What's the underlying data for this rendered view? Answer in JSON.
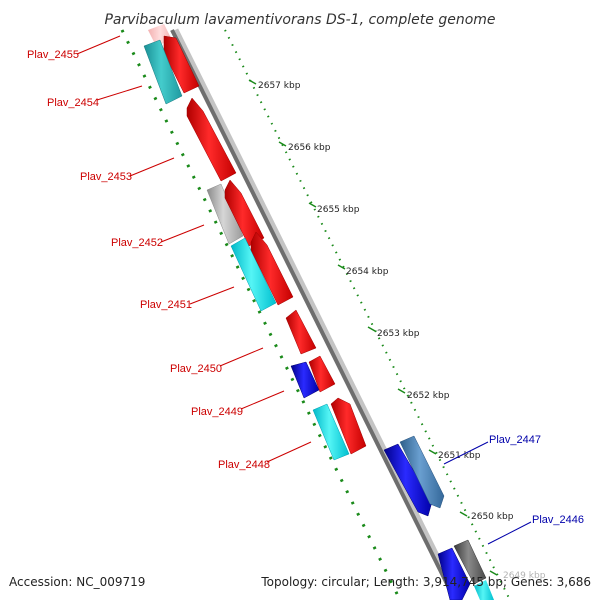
{
  "title": "Parvibaculum lavamentivorans DS-1, complete genome",
  "accession": "Accession: NC_009719",
  "summary": "Topology: circular; Length: 3,914,745 bp; Genes: 3,686",
  "colors": {
    "left_label": "#cc0000",
    "right_label": "#0000aa",
    "tick_green": "#1a8a1a",
    "backbone_dark": "#6e6e6e",
    "backbone_light": "#c4c4c4",
    "red": "#ee1111",
    "cyan": "#22dddd",
    "teal": "#33bbbb",
    "blue": "#1111dd",
    "steelblue": "#4a7fb0",
    "gray": "#b5b5b5",
    "darkgray": "#6b6b6b",
    "pink": "#f4aaaa"
  },
  "coordinate_labels": [
    "2657 kbp",
    "2656 kbp",
    "2655 kbp",
    "2654 kbp",
    "2653 kbp",
    "2652 kbp",
    "2651 kbp",
    "2650 kbp",
    "2649 kbp"
  ],
  "left_gene_labels": [
    "Plav_2455",
    "Plav_2454",
    "Plav_2453",
    "Plav_2452",
    "Plav_2451",
    "Plav_2450",
    "Plav_2449",
    "Plav_2448"
  ],
  "right_gene_labels": [
    "Plav_2447",
    "Plav_2446"
  ]
}
